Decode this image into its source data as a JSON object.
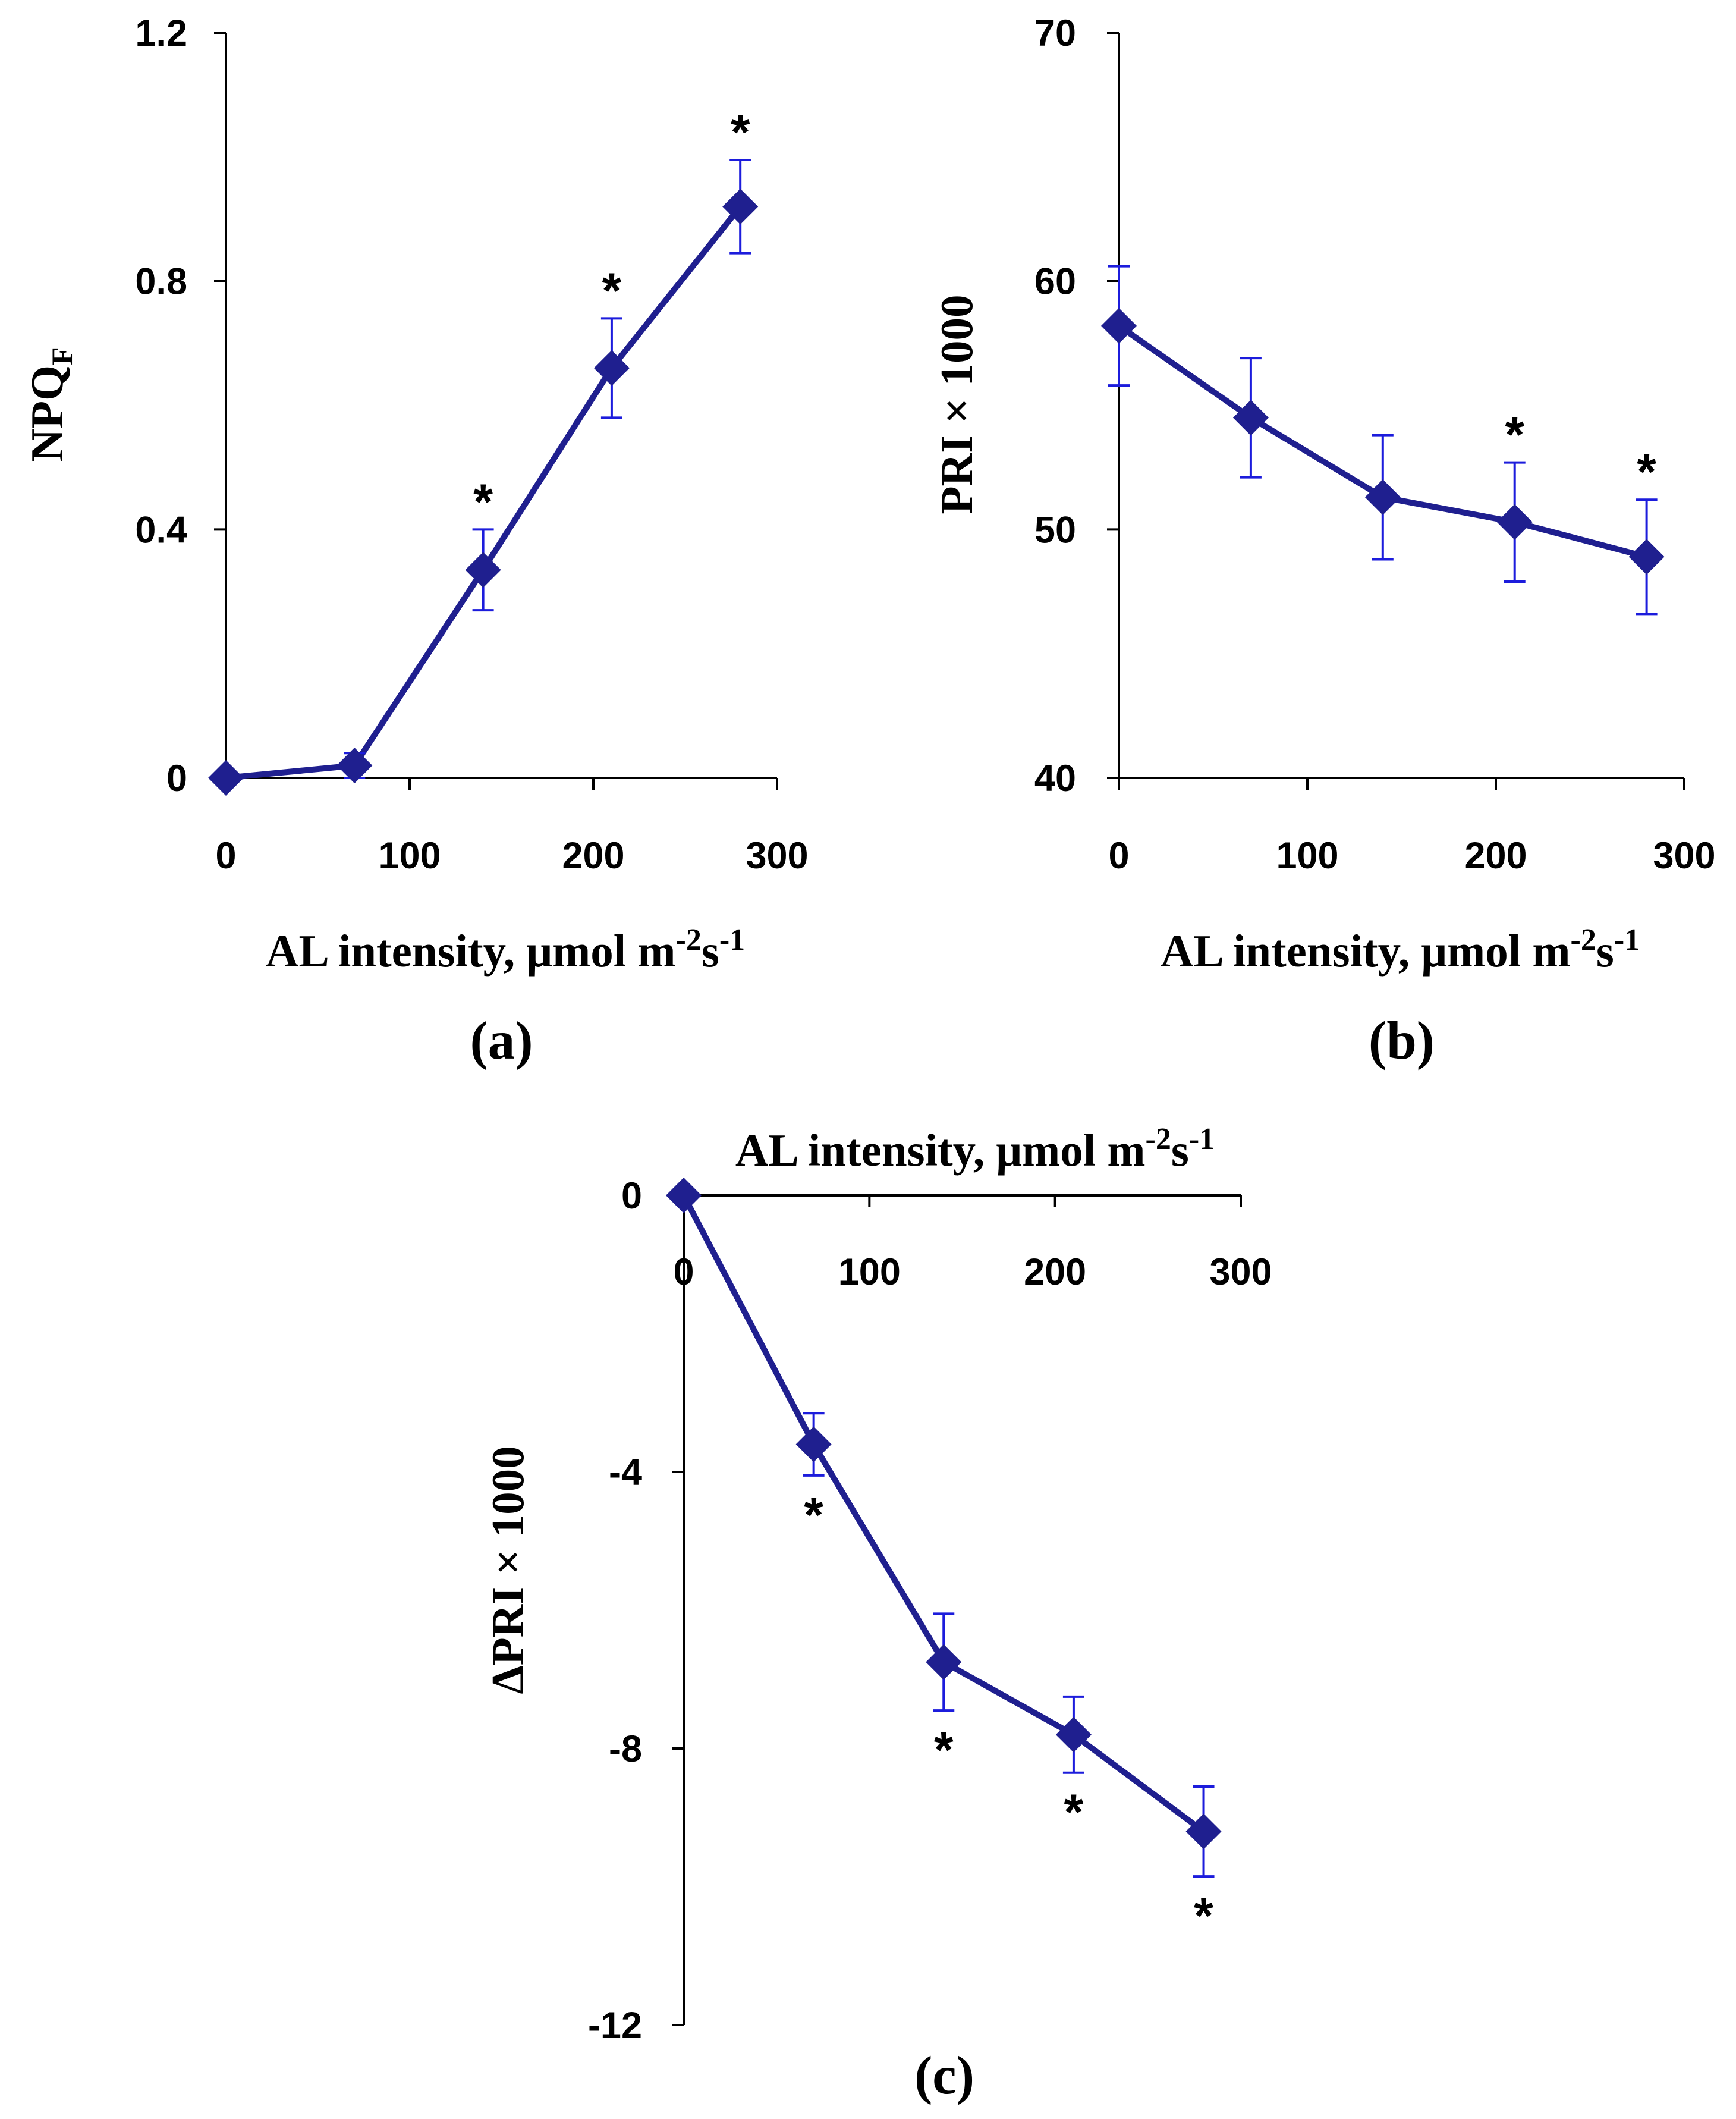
{
  "chart_data": [
    {
      "type": "line",
      "panel_label": "(a)",
      "xlabel": {
        "main": "AL intensity, μmol m",
        "sup1": "-2",
        "mid": "s",
        "sup2": "-1"
      },
      "ylabel": {
        "main": "NPQ",
        "sub": "F"
      },
      "xlim": [
        0,
        300
      ],
      "ylim": [
        0,
        1.2
      ],
      "xticks": [
        0,
        100,
        200,
        300
      ],
      "xtick_labels": [
        "0",
        "100",
        "200",
        "300"
      ],
      "yticks": [
        0,
        0.4,
        0.8,
        1.2
      ],
      "ytick_labels": [
        "0",
        "0.4",
        "0.8",
        "1.2"
      ],
      "x_axis_position": "bottom",
      "grid": false,
      "series": [
        {
          "x": [
            0,
            70,
            140,
            210,
            280
          ],
          "y": [
            0.0,
            0.02,
            0.335,
            0.66,
            0.92
          ],
          "err": [
            0.0,
            0.02,
            0.065,
            0.08,
            0.075
          ],
          "significant": [
            false,
            false,
            true,
            true,
            true
          ]
        }
      ],
      "annotation_text": "*",
      "annotation_position": "above",
      "color": "#1f1f8f",
      "errorbar_color": "#1c1cdc"
    },
    {
      "type": "line",
      "panel_label": "(b)",
      "xlabel": {
        "main": "AL intensity, μmol m",
        "sup1": "-2",
        "mid": "s",
        "sup2": "-1"
      },
      "ylabel": {
        "main": "PRI × 1000",
        "sub": ""
      },
      "xlim": [
        0,
        300
      ],
      "ylim": [
        40,
        70
      ],
      "xticks": [
        0,
        100,
        200,
        300
      ],
      "xtick_labels": [
        "0",
        "100",
        "200",
        "300"
      ],
      "yticks": [
        40,
        50,
        60,
        70
      ],
      "ytick_labels": [
        "40",
        "50",
        "60",
        "70"
      ],
      "x_axis_position": "bottom",
      "grid": false,
      "series": [
        {
          "x": [
            0,
            70,
            140,
            210,
            280
          ],
          "y": [
            58.2,
            54.5,
            51.3,
            50.3,
            48.9
          ],
          "err": [
            2.4,
            2.4,
            2.5,
            2.4,
            2.3
          ],
          "significant": [
            false,
            false,
            false,
            true,
            true
          ]
        }
      ],
      "annotation_text": "*",
      "annotation_position": "above",
      "color": "#1f1f8f",
      "errorbar_color": "#1c1cdc"
    },
    {
      "type": "line",
      "panel_label": "(c)",
      "xlabel": {
        "main": "AL intensity, μmol m",
        "sup1": "-2",
        "mid": "s",
        "sup2": "-1"
      },
      "ylabel": {
        "main": "ΔPRI × 1000",
        "sub": ""
      },
      "xlim": [
        0,
        300
      ],
      "ylim": [
        -12,
        0
      ],
      "xticks": [
        0,
        100,
        200,
        300
      ],
      "xtick_labels": [
        "0",
        "100",
        "200",
        "300"
      ],
      "yticks": [
        -12,
        -8,
        -4,
        0
      ],
      "ytick_labels": [
        "-12",
        "-8",
        "-4",
        "0"
      ],
      "x_axis_position": "top",
      "grid": false,
      "series": [
        {
          "x": [
            0,
            70,
            140,
            210,
            280
          ],
          "y": [
            0.0,
            -3.6,
            -6.75,
            -7.8,
            -9.2
          ],
          "err": [
            0.0,
            0.45,
            0.7,
            0.55,
            0.65
          ],
          "significant": [
            false,
            true,
            true,
            true,
            true
          ]
        }
      ],
      "annotation_text": "*",
      "annotation_position": "below",
      "color": "#1f1f8f",
      "errorbar_color": "#1c1cdc"
    }
  ]
}
